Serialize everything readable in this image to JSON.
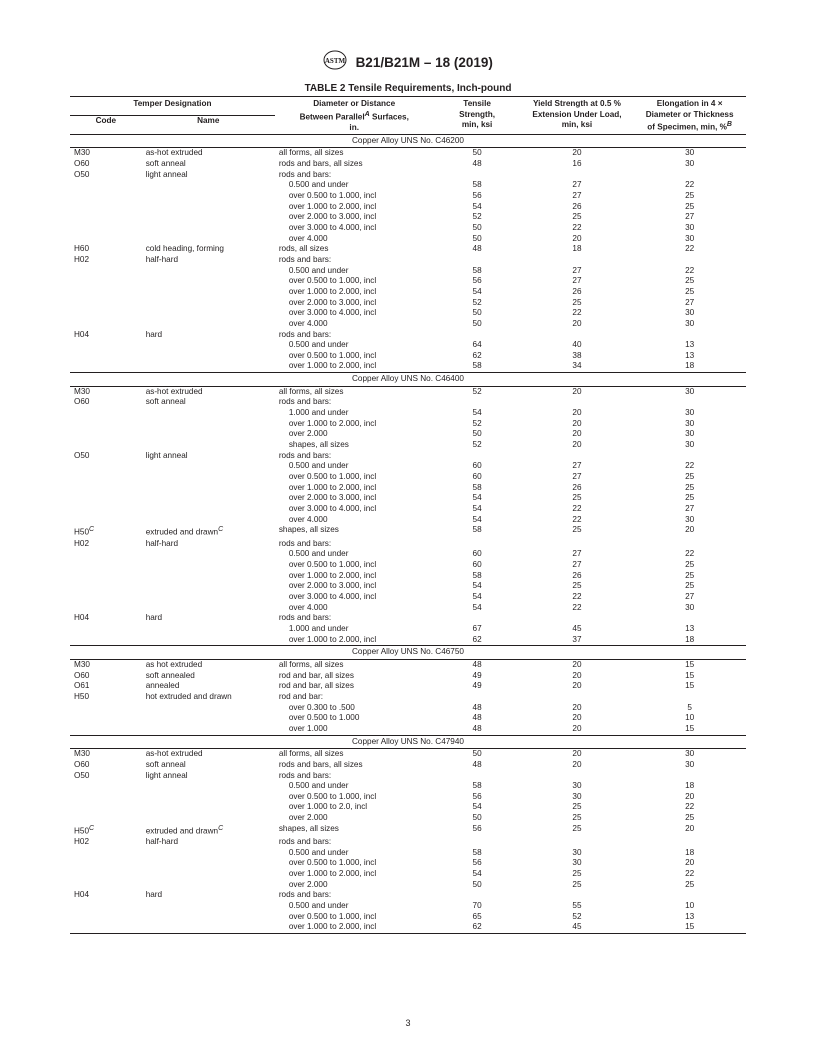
{
  "header": {
    "spec": "B21/B21M – 18 (2019)"
  },
  "title": "TABLE 2 Tensile Requirements, Inch-pound",
  "columns": {
    "temper_span": "Temper Designation",
    "code": "Code",
    "name": "Name",
    "dia1": "Diameter or Distance",
    "dia2a": "Between Parallel",
    "dia2b": " Surfaces,",
    "dia3": "in.",
    "ts1": "Tensile",
    "ts2": "Strength,",
    "ts3": "min, ksi",
    "ys1": "Yield Strength at 0.5 %",
    "ys2": "Extension Under Load,",
    "ys3": "min, ksi",
    "el1": "Elongation in 4 ×",
    "el2": "Diameter or Thickness",
    "el3a": "of Specimen, min, %"
  },
  "sections": [
    {
      "heading": "Copper Alloy UNS No. C46200",
      "rows": [
        {
          "code": "M30",
          "name": "as-hot extruded",
          "dia": "all forms, all sizes",
          "ts": "50",
          "ys": "20",
          "el": "30"
        },
        {
          "code": "O60",
          "name": "soft anneal",
          "dia": "rods and bars, all sizes",
          "ts": "48",
          "ys": "16",
          "el": "30"
        },
        {
          "code": "O50",
          "name": "light anneal",
          "dia": "rods and bars:",
          "ts": "",
          "ys": "",
          "el": ""
        },
        {
          "code": "",
          "name": "",
          "dia": "  0.500 and under",
          "ts": "58",
          "ys": "27",
          "el": "22"
        },
        {
          "code": "",
          "name": "",
          "dia": "  over 0.500 to 1.000, incl",
          "ts": "56",
          "ys": "27",
          "el": "25"
        },
        {
          "code": "",
          "name": "",
          "dia": "  over 1.000 to 2.000, incl",
          "ts": "54",
          "ys": "26",
          "el": "25"
        },
        {
          "code": "",
          "name": "",
          "dia": "  over 2.000 to 3.000, incl",
          "ts": "52",
          "ys": "25",
          "el": "27"
        },
        {
          "code": "",
          "name": "",
          "dia": "  over 3.000 to 4.000, incl",
          "ts": "50",
          "ys": "22",
          "el": "30"
        },
        {
          "code": "",
          "name": "",
          "dia": "  over 4.000",
          "ts": "50",
          "ys": "20",
          "el": "30"
        },
        {
          "code": "H60",
          "name": "cold heading, forming",
          "dia": "rods, all sizes",
          "ts": "48",
          "ys": "18",
          "el": "22"
        },
        {
          "code": "H02",
          "name": "half-hard",
          "dia": "rods and bars:",
          "ts": "",
          "ys": "",
          "el": ""
        },
        {
          "code": "",
          "name": "",
          "dia": "  0.500 and under",
          "ts": "58",
          "ys": "27",
          "el": "22"
        },
        {
          "code": "",
          "name": "",
          "dia": "  over 0.500 to 1.000, incl",
          "ts": "56",
          "ys": "27",
          "el": "25"
        },
        {
          "code": "",
          "name": "",
          "dia": "  over 1.000 to 2.000, incl",
          "ts": "54",
          "ys": "26",
          "el": "25"
        },
        {
          "code": "",
          "name": "",
          "dia": "  over 2.000 to 3.000, incl",
          "ts": "52",
          "ys": "25",
          "el": "27"
        },
        {
          "code": "",
          "name": "",
          "dia": "  over 3.000 to 4.000, incl",
          "ts": "50",
          "ys": "22",
          "el": "30"
        },
        {
          "code": "",
          "name": "",
          "dia": "  over 4.000",
          "ts": "50",
          "ys": "20",
          "el": "30"
        },
        {
          "code": "H04",
          "name": "hard",
          "dia": "rods and bars:",
          "ts": "",
          "ys": "",
          "el": ""
        },
        {
          "code": "",
          "name": "",
          "dia": "  0.500 and under",
          "ts": "64",
          "ys": "40",
          "el": "13"
        },
        {
          "code": "",
          "name": "",
          "dia": "  over 0.500 to 1.000, incl",
          "ts": "62",
          "ys": "38",
          "el": "13"
        },
        {
          "code": "",
          "name": "",
          "dia": "  over 1.000 to 2.000, incl",
          "ts": "58",
          "ys": "34",
          "el": "18"
        }
      ]
    },
    {
      "heading": "Copper Alloy UNS No. C46400",
      "rows": [
        {
          "code": "M30",
          "name": "as-hot extruded",
          "dia": "all forms, all sizes",
          "ts": "52",
          "ys": "20",
          "el": "30"
        },
        {
          "code": "O60",
          "name": "soft anneal",
          "dia": "rods and bars:",
          "ts": "",
          "ys": "",
          "el": ""
        },
        {
          "code": "",
          "name": "",
          "dia": "  1.000 and under",
          "ts": "54",
          "ys": "20",
          "el": "30"
        },
        {
          "code": "",
          "name": "",
          "dia": "  over 1.000 to 2.000, incl",
          "ts": "52",
          "ys": "20",
          "el": "30"
        },
        {
          "code": "",
          "name": "",
          "dia": "  over 2.000",
          "ts": "50",
          "ys": "20",
          "el": "30"
        },
        {
          "code": "",
          "name": "",
          "dia": "  shapes, all sizes",
          "ts": "52",
          "ys": "20",
          "el": "30"
        },
        {
          "code": "O50",
          "name": "light anneal",
          "dia": "rods and bars:",
          "ts": "",
          "ys": "",
          "el": ""
        },
        {
          "code": "",
          "name": "",
          "dia": "  0.500 and under",
          "ts": "60",
          "ys": "27",
          "el": "22"
        },
        {
          "code": "",
          "name": "",
          "dia": "  over 0.500 to 1.000, incl",
          "ts": "60",
          "ys": "27",
          "el": "25"
        },
        {
          "code": "",
          "name": "",
          "dia": "  over 1.000 to 2.000, incl",
          "ts": "58",
          "ys": "26",
          "el": "25"
        },
        {
          "code": "",
          "name": "",
          "dia": "  over 2.000 to 3.000, incl",
          "ts": "54",
          "ys": "25",
          "el": "25"
        },
        {
          "code": "",
          "name": "",
          "dia": "  over 3.000 to 4.000, incl",
          "ts": "54",
          "ys": "22",
          "el": "27"
        },
        {
          "code": "",
          "name": "",
          "dia": "  over 4.000",
          "ts": "54",
          "ys": "22",
          "el": "30"
        },
        {
          "code": "H50",
          "codesup": "C",
          "name": "extruded and drawn",
          "namesup": "C",
          "dia": "shapes, all sizes",
          "ts": "58",
          "ys": "25",
          "el": "20"
        },
        {
          "code": "H02",
          "name": "half-hard",
          "dia": "rods and bars:",
          "ts": "",
          "ys": "",
          "el": ""
        },
        {
          "code": "",
          "name": "",
          "dia": "  0.500 and under",
          "ts": "60",
          "ys": "27",
          "el": "22"
        },
        {
          "code": "",
          "name": "",
          "dia": "  over 0.500 to 1.000, incl",
          "ts": "60",
          "ys": "27",
          "el": "25"
        },
        {
          "code": "",
          "name": "",
          "dia": "  over 1.000 to 2.000, incl",
          "ts": "58",
          "ys": "26",
          "el": "25"
        },
        {
          "code": "",
          "name": "",
          "dia": "  over 2.000 to 3.000, incl",
          "ts": "54",
          "ys": "25",
          "el": "25"
        },
        {
          "code": "",
          "name": "",
          "dia": "  over 3.000 to 4.000, incl",
          "ts": "54",
          "ys": "22",
          "el": "27"
        },
        {
          "code": "",
          "name": "",
          "dia": "  over 4.000",
          "ts": "54",
          "ys": "22",
          "el": "30"
        },
        {
          "code": "H04",
          "name": "hard",
          "dia": "rods and bars:",
          "ts": "",
          "ys": "",
          "el": ""
        },
        {
          "code": "",
          "name": "",
          "dia": "  1.000 and under",
          "ts": "67",
          "ys": "45",
          "el": "13"
        },
        {
          "code": "",
          "name": "",
          "dia": "  over 1.000 to 2.000, incl",
          "ts": "62",
          "ys": "37",
          "el": "18"
        }
      ]
    },
    {
      "heading": "Copper Alloy UNS No. C46750",
      "rows": [
        {
          "code": "M30",
          "name": "as hot extruded",
          "dia": "all forms, all sizes",
          "ts": "48",
          "ys": "20",
          "el": "15"
        },
        {
          "code": "O60",
          "name": "soft annealed",
          "dia": "rod and bar, all sizes",
          "ts": "49",
          "ys": "20",
          "el": "15"
        },
        {
          "code": "O61",
          "name": "annealed",
          "dia": "rod and bar, all sizes",
          "ts": "49",
          "ys": "20",
          "el": "15"
        },
        {
          "code": "H50",
          "name": "hot extruded and drawn",
          "dia": "rod and bar:",
          "ts": "",
          "ys": "",
          "el": ""
        },
        {
          "code": "",
          "name": "",
          "dia": "  over 0.300 to .500",
          "ts": "48",
          "ys": "20",
          "el": "5"
        },
        {
          "code": "",
          "name": "",
          "dia": "  over 0.500 to 1.000",
          "ts": "48",
          "ys": "20",
          "el": "10"
        },
        {
          "code": "",
          "name": "",
          "dia": "  over 1.000",
          "ts": "48",
          "ys": "20",
          "el": "15"
        }
      ]
    },
    {
      "heading": "Copper Alloy UNS No. C47940",
      "rows": [
        {
          "code": "M30",
          "name": "as-hot extruded",
          "dia": "all forms, all sizes",
          "ts": "50",
          "ys": "20",
          "el": "30"
        },
        {
          "code": "O60",
          "name": "soft anneal",
          "dia": "rods and bars, all sizes",
          "ts": "48",
          "ys": "20",
          "el": "30"
        },
        {
          "code": "O50",
          "name": "light anneal",
          "dia": "rods and bars:",
          "ts": "",
          "ys": "",
          "el": ""
        },
        {
          "code": "",
          "name": "",
          "dia": "  0.500 and under",
          "ts": "58",
          "ys": "30",
          "el": "18"
        },
        {
          "code": "",
          "name": "",
          "dia": "  over 0.500 to 1.000, incl",
          "ts": "56",
          "ys": "30",
          "el": "20"
        },
        {
          "code": "",
          "name": "",
          "dia": "  over 1.000 to 2.0, incl",
          "ts": "54",
          "ys": "25",
          "el": "22"
        },
        {
          "code": "",
          "name": "",
          "dia": "  over 2.000",
          "ts": "50",
          "ys": "25",
          "el": "25"
        },
        {
          "code": "H50",
          "codesup": "C",
          "name": "extruded and drawn",
          "namesup": "C",
          "dia": "shapes, all sizes",
          "ts": "56",
          "ys": "25",
          "el": "20"
        },
        {
          "code": "H02",
          "name": "half-hard",
          "dia": "rods and bars:",
          "ts": "",
          "ys": "",
          "el": ""
        },
        {
          "code": "",
          "name": "",
          "dia": "  0.500 and under",
          "ts": "58",
          "ys": "30",
          "el": "18"
        },
        {
          "code": "",
          "name": "",
          "dia": "  over 0.500 to 1.000, incl",
          "ts": "56",
          "ys": "30",
          "el": "20"
        },
        {
          "code": "",
          "name": "",
          "dia": "  over 1.000 to 2.000, incl",
          "ts": "54",
          "ys": "25",
          "el": "22"
        },
        {
          "code": "",
          "name": "",
          "dia": "  over 2.000",
          "ts": "50",
          "ys": "25",
          "el": "25"
        },
        {
          "code": "H04",
          "name": "hard",
          "dia": "rods and bars:",
          "ts": "",
          "ys": "",
          "el": ""
        },
        {
          "code": "",
          "name": "",
          "dia": "  0.500 and under",
          "ts": "70",
          "ys": "55",
          "el": "10"
        },
        {
          "code": "",
          "name": "",
          "dia": "  over 0.500 to 1.000, incl",
          "ts": "65",
          "ys": "52",
          "el": "13"
        },
        {
          "code": "",
          "name": "",
          "dia": "  over 1.000 to 2.000, incl",
          "ts": "62",
          "ys": "45",
          "el": "15"
        }
      ]
    }
  ],
  "pagenum": "3"
}
